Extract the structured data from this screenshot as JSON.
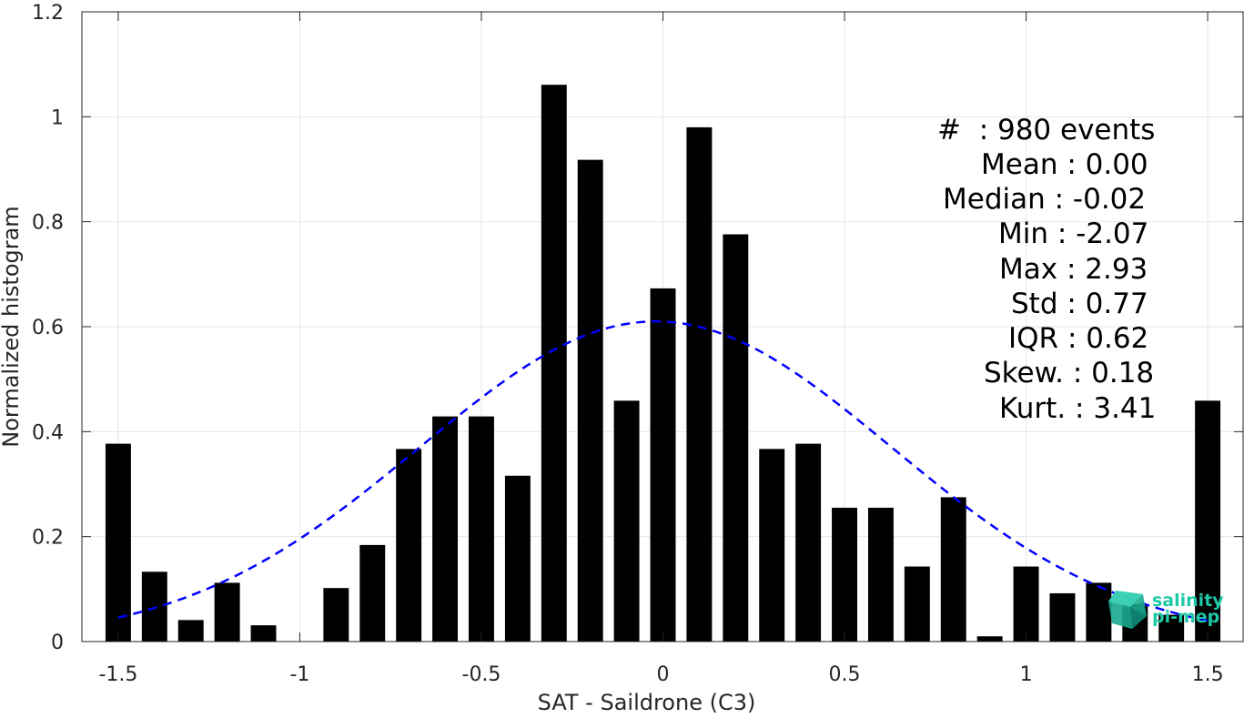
{
  "chart_data": {
    "type": "bar",
    "title": "",
    "xlabel": "SAT - Saildrone (C3)",
    "ylabel": "Normalized histogram",
    "xlim": [
      -1.6,
      1.6
    ],
    "ylim": [
      0,
      1.2
    ],
    "grid": true,
    "x_ticks": [
      "-1.5",
      "-1",
      "-0.5",
      "0",
      "0.5",
      "1",
      "1.5"
    ],
    "x_tick_values": [
      -1.5,
      -1,
      -0.5,
      0,
      0.5,
      1,
      1.5
    ],
    "y_ticks": [
      "0",
      "0.2",
      "0.4",
      "0.6",
      "0.8",
      "1",
      "1.2"
    ],
    "y_tick_values": [
      0,
      0.2,
      0.4,
      0.6,
      0.8,
      1,
      1.2
    ],
    "bar_width": 0.07,
    "bars": [
      {
        "x": -1.5,
        "value": 0.377
      },
      {
        "x": -1.4,
        "value": 0.133
      },
      {
        "x": -1.3,
        "value": 0.041
      },
      {
        "x": -1.2,
        "value": 0.112
      },
      {
        "x": -1.1,
        "value": 0.031
      },
      {
        "x": -1.0,
        "value": 0.0
      },
      {
        "x": -0.9,
        "value": 0.102
      },
      {
        "x": -0.8,
        "value": 0.184
      },
      {
        "x": -0.7,
        "value": 0.367
      },
      {
        "x": -0.6,
        "value": 0.429
      },
      {
        "x": -0.5,
        "value": 0.429
      },
      {
        "x": -0.4,
        "value": 0.316
      },
      {
        "x": -0.3,
        "value": 1.061
      },
      {
        "x": -0.2,
        "value": 0.918
      },
      {
        "x": -0.1,
        "value": 0.459
      },
      {
        "x": 0.0,
        "value": 0.673
      },
      {
        "x": 0.1,
        "value": 0.98
      },
      {
        "x": 0.2,
        "value": 0.776
      },
      {
        "x": 0.3,
        "value": 0.367
      },
      {
        "x": 0.4,
        "value": 0.377
      },
      {
        "x": 0.5,
        "value": 0.255
      },
      {
        "x": 0.6,
        "value": 0.255
      },
      {
        "x": 0.7,
        "value": 0.143
      },
      {
        "x": 0.8,
        "value": 0.275
      },
      {
        "x": 0.9,
        "value": 0.01
      },
      {
        "x": 1.0,
        "value": 0.143
      },
      {
        "x": 1.1,
        "value": 0.092
      },
      {
        "x": 1.2,
        "value": 0.112
      },
      {
        "x": 1.3,
        "value": 0.071
      },
      {
        "x": 1.4,
        "value": 0.051
      },
      {
        "x": 1.5,
        "value": 0.459
      }
    ],
    "fit_curve": {
      "type": "normal",
      "mean": -0.02,
      "std": 0.65,
      "peak": 0.61,
      "x_range": [
        -1.5,
        1.5
      ],
      "color": "#0000ff",
      "style": "dashed"
    },
    "bar_color": "#000000"
  },
  "stats": [
    {
      "label": "#  ",
      "value": ": 980 events"
    },
    {
      "label": "Mean ",
      "value": ": 0.00"
    },
    {
      "label": "Median ",
      "value": ": -0.02"
    },
    {
      "label": "Min ",
      "value": ": -2.07"
    },
    {
      "label": "Max ",
      "value": ": 2.93"
    },
    {
      "label": "Std ",
      "value": ": 0.77"
    },
    {
      "label": "IQR ",
      "value": ": 0.62"
    },
    {
      "label": "Skew. ",
      "value": ": 0.18"
    },
    {
      "label": "Kurt. ",
      "value": ": 3.41"
    }
  ],
  "logo": {
    "line1": "salinity",
    "line2": "pi-mep"
  }
}
